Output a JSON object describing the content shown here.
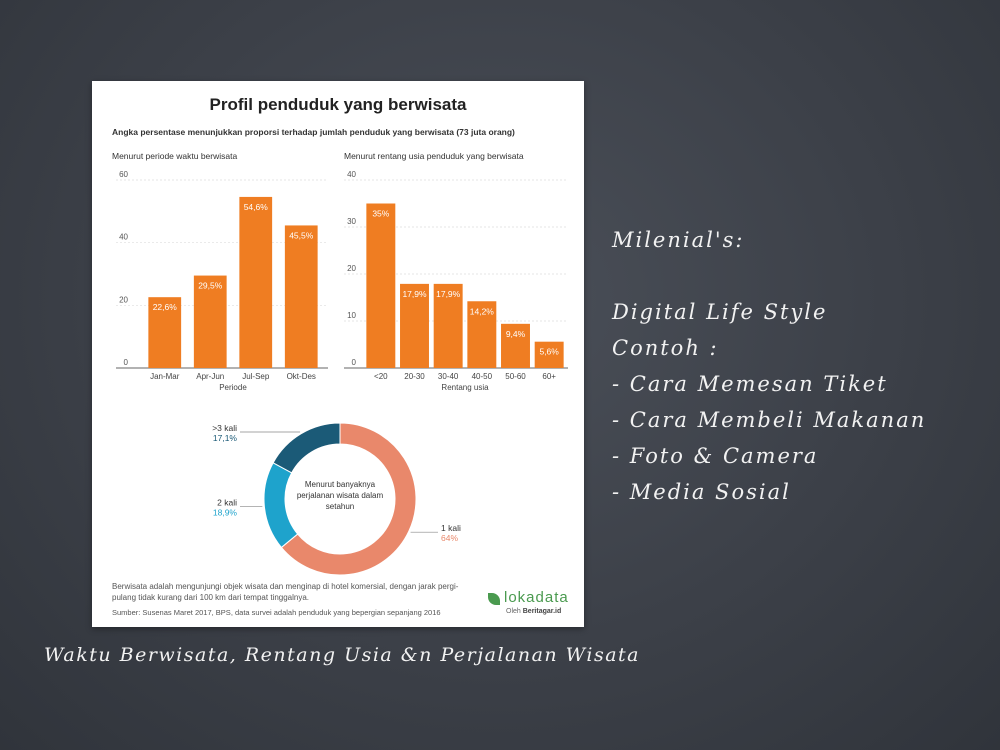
{
  "card": {
    "title": "Profil penduduk yang berwisata",
    "subtitle": "Angka persentase menunjukkan proporsi terhadap jumlah penduduk yang berwisata (73 juta orang)",
    "note": "Berwisata adalah mengunjungi objek wisata dan menginap di hotel komersial, dengan jarak pergi-pulang tidak kurang dari 100 km dari tempat tinggalnya.",
    "source": "Sumber: Susenas Maret 2017, BPS, data survei adalah penduduk yang bepergian sepanjang 2016",
    "logo": {
      "name": "lokadata",
      "by_prefix": "Oleh",
      "by": "Beritagar.id"
    }
  },
  "colors": {
    "bar": "#ef7d22",
    "bar_label": "#ffffff",
    "donut": [
      "#e9886b",
      "#1ea3cc",
      "#1b5a77"
    ]
  },
  "chart_data": [
    {
      "type": "bar",
      "title": "Menurut periode waktu berwisata",
      "xlabel": "Periode",
      "ylabel": "",
      "ylim": [
        0,
        60
      ],
      "yticks": [
        0,
        20,
        40,
        60
      ],
      "categories": [
        "Jan-Mar",
        "Apr-Jun",
        "Jul-Sep",
        "Okt-Des"
      ],
      "values": [
        22.6,
        29.5,
        54.6,
        45.5
      ],
      "value_labels": [
        "22,6%",
        "29,5%",
        "54,6%",
        "45,5%"
      ]
    },
    {
      "type": "bar",
      "title": "Menurut rentang usia penduduk yang berwisata",
      "xlabel": "Rentang usia",
      "ylabel": "",
      "ylim": [
        0,
        40
      ],
      "yticks": [
        0,
        10,
        20,
        30,
        40
      ],
      "categories": [
        "<20",
        "20-30",
        "30-40",
        "40-50",
        "50-60",
        "60+"
      ],
      "values": [
        35,
        17.9,
        17.9,
        14.2,
        9.4,
        5.6
      ],
      "value_labels": [
        "35%",
        "17,9%",
        "17,9%",
        "14,2%",
        "9,4%",
        "5,6%"
      ]
    },
    {
      "type": "pie",
      "title": "Menurut banyaknya perjalanan wisata dalam setahun",
      "title_lines": [
        "Menurut banyaknya",
        "perjalanan wisata dalam",
        "setahun"
      ],
      "categories": [
        "1 kali",
        "2 kali",
        ">3 kali"
      ],
      "values": [
        64,
        18.9,
        17.1
      ],
      "value_labels": [
        "64%",
        "18,9%",
        "17,1%"
      ]
    }
  ],
  "slide": {
    "notes": [
      "Milenial's:",
      "",
      "Digital Life Style",
      "Contoh :",
      "-  Cara Memesan Tiket",
      "-  Cara Membeli Makanan",
      "-  Foto & Camera",
      "-  Media Sosial"
    ],
    "caption": "Waktu Berwisata, Rentang Usia &n Perjalanan Wisata"
  }
}
